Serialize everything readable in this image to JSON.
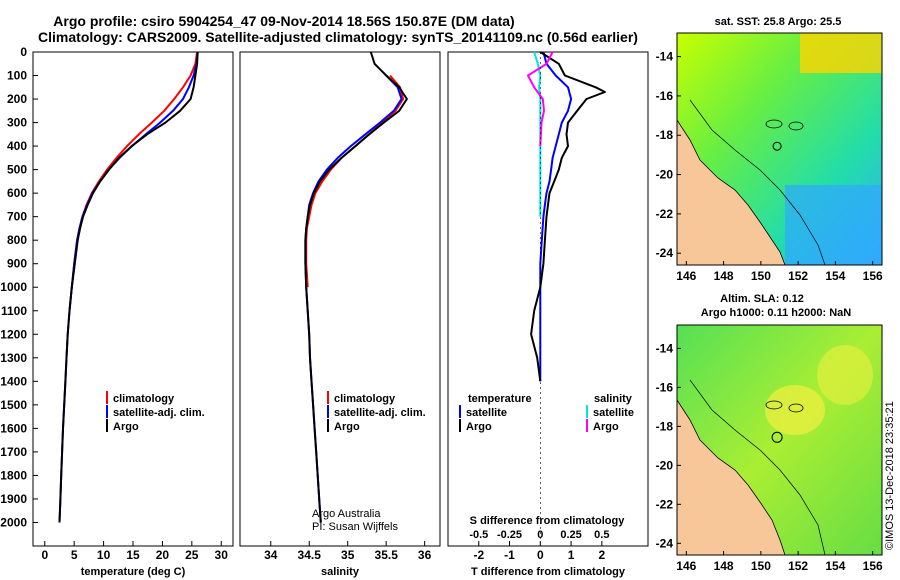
{
  "header": {
    "title_line1": "Argo profile: csiro 5904254_47 09-Nov-2014 18.56S 150.87E (DM data)",
    "title_line2": "Climatology: CARS2009. Satellite-adjusted climatology: synTS_20141109.nc (0.56d earlier)"
  },
  "colors": {
    "climatology": "#ff0000",
    "satellite": "#0000ff",
    "argo": "#000000",
    "satellite_salinity": "#00e5e5",
    "argo_salinity": "#ff00ff",
    "land": "#f7c79a"
  },
  "chart_data": [
    {
      "type": "line",
      "name": "temperature-profile",
      "xlabel": "temperature (deg C)",
      "ylabel": "",
      "xlim": [
        -2,
        32
      ],
      "ylim": [
        2100,
        0
      ],
      "xticks": [
        0,
        5,
        10,
        15,
        20,
        25,
        30
      ],
      "yticks": [
        0,
        100,
        200,
        300,
        400,
        500,
        600,
        700,
        800,
        900,
        1000,
        1100,
        1200,
        1300,
        1400,
        1500,
        1600,
        1700,
        1800,
        1900,
        2000
      ],
      "legend": [
        "climatology",
        "satellite-adj. clim.",
        "Argo"
      ],
      "series": [
        {
          "name": "climatology",
          "color": "#ff0000",
          "points": [
            [
              25.9,
              0
            ],
            [
              25.6,
              50
            ],
            [
              24.8,
              100
            ],
            [
              23.5,
              150
            ],
            [
              22.0,
              200
            ],
            [
              20.3,
              250
            ],
            [
              18.2,
              300
            ],
            [
              16.0,
              350
            ],
            [
              14.0,
              400
            ],
            [
              12.2,
              450
            ],
            [
              10.6,
              500
            ],
            [
              9.2,
              550
            ],
            [
              8.0,
              600
            ],
            [
              7.1,
              650
            ],
            [
              6.4,
              700
            ],
            [
              5.9,
              750
            ],
            [
              5.5,
              800
            ],
            [
              5.0,
              900
            ],
            [
              4.6,
              1000
            ],
            [
              4.2,
              1100
            ]
          ]
        },
        {
          "name": "satellite-adj. clim.",
          "color": "#0000ff",
          "points": [
            [
              26.0,
              0
            ],
            [
              25.8,
              50
            ],
            [
              25.3,
              100
            ],
            [
              24.5,
              150
            ],
            [
              23.5,
              200
            ],
            [
              21.8,
              250
            ],
            [
              19.6,
              300
            ],
            [
              17.2,
              350
            ],
            [
              14.8,
              400
            ],
            [
              12.7,
              450
            ],
            [
              10.9,
              500
            ],
            [
              9.4,
              550
            ],
            [
              8.1,
              600
            ],
            [
              7.2,
              650
            ],
            [
              6.4,
              700
            ],
            [
              5.9,
              750
            ],
            [
              5.5,
              800
            ],
            [
              5.0,
              900
            ],
            [
              4.6,
              1000
            ],
            [
              4.2,
              1100
            ],
            [
              3.9,
              1200
            ],
            [
              3.7,
              1300
            ],
            [
              3.5,
              1400
            ],
            [
              3.3,
              1500
            ],
            [
              3.1,
              1600
            ],
            [
              2.95,
              1700
            ],
            [
              2.8,
              1800
            ],
            [
              2.65,
              1900
            ],
            [
              2.5,
              2000
            ]
          ]
        },
        {
          "name": "Argo",
          "color": "#000000",
          "points": [
            [
              26.0,
              0
            ],
            [
              25.9,
              50
            ],
            [
              25.6,
              100
            ],
            [
              25.3,
              150
            ],
            [
              24.8,
              200
            ],
            [
              23.0,
              250
            ],
            [
              20.5,
              300
            ],
            [
              17.4,
              350
            ],
            [
              14.8,
              400
            ],
            [
              12.6,
              450
            ],
            [
              10.9,
              500
            ],
            [
              9.4,
              550
            ],
            [
              8.2,
              600
            ],
            [
              7.3,
              650
            ],
            [
              6.5,
              700
            ],
            [
              6.0,
              750
            ],
            [
              5.6,
              800
            ],
            [
              5.1,
              900
            ],
            [
              4.6,
              1000
            ],
            [
              4.2,
              1100
            ],
            [
              3.9,
              1200
            ],
            [
              3.7,
              1300
            ],
            [
              3.5,
              1400
            ],
            [
              3.3,
              1500
            ],
            [
              3.1,
              1600
            ],
            [
              2.95,
              1700
            ],
            [
              2.8,
              1800
            ],
            [
              2.65,
              1900
            ],
            [
              2.5,
              2000
            ]
          ]
        }
      ]
    },
    {
      "type": "line",
      "name": "salinity-profile",
      "xlabel": "salinity",
      "xlim": [
        33.6,
        36.2
      ],
      "ylim": [
        2100,
        0
      ],
      "xticks": [
        34,
        34.5,
        35,
        35.5,
        36
      ],
      "xticklabels": [
        "34",
        "34.5",
        "35",
        "35.5",
        "36"
      ],
      "legend": [
        "climatology",
        "satellite-adj. clim.",
        "Argo"
      ],
      "annotations": [
        "Argo Australia",
        "PI: Susan Wijffels"
      ],
      "series": [
        {
          "name": "climatology",
          "color": "#ff0000",
          "points": [
            [
              35.55,
              100
            ],
            [
              35.68,
              150
            ],
            [
              35.72,
              200
            ],
            [
              35.62,
              250
            ],
            [
              35.45,
              300
            ],
            [
              35.28,
              350
            ],
            [
              35.1,
              400
            ],
            [
              34.92,
              450
            ],
            [
              34.78,
              500
            ],
            [
              34.67,
              550
            ],
            [
              34.58,
              600
            ],
            [
              34.53,
              650
            ],
            [
              34.5,
              700
            ],
            [
              34.47,
              750
            ],
            [
              34.46,
              800
            ],
            [
              34.46,
              900
            ],
            [
              34.48,
              1000
            ]
          ]
        },
        {
          "name": "satellite-adj. clim.",
          "color": "#0000ff",
          "points": [
            [
              35.5,
              100
            ],
            [
              35.65,
              150
            ],
            [
              35.7,
              200
            ],
            [
              35.6,
              250
            ],
            [
              35.42,
              300
            ],
            [
              35.23,
              350
            ],
            [
              35.04,
              400
            ],
            [
              34.87,
              450
            ],
            [
              34.73,
              500
            ],
            [
              34.62,
              550
            ],
            [
              34.55,
              600
            ],
            [
              34.5,
              650
            ],
            [
              34.48,
              700
            ],
            [
              34.46,
              750
            ],
            [
              34.45,
              800
            ],
            [
              34.45,
              900
            ],
            [
              34.46,
              1000
            ],
            [
              34.48,
              1100
            ],
            [
              34.5,
              1200
            ],
            [
              34.51,
              1300
            ],
            [
              34.53,
              1400
            ],
            [
              34.55,
              1500
            ],
            [
              34.57,
              1600
            ],
            [
              34.59,
              1700
            ],
            [
              34.61,
              1800
            ],
            [
              34.63,
              1900
            ],
            [
              34.65,
              2000
            ]
          ]
        },
        {
          "name": "Argo",
          "color": "#000000",
          "points": [
            [
              35.3,
              0
            ],
            [
              35.35,
              50
            ],
            [
              35.5,
              100
            ],
            [
              35.67,
              150
            ],
            [
              35.77,
              200
            ],
            [
              35.67,
              250
            ],
            [
              35.47,
              300
            ],
            [
              35.28,
              350
            ],
            [
              35.1,
              400
            ],
            [
              34.92,
              450
            ],
            [
              34.76,
              500
            ],
            [
              34.64,
              550
            ],
            [
              34.56,
              600
            ],
            [
              34.51,
              650
            ],
            [
              34.48,
              700
            ],
            [
              34.46,
              750
            ],
            [
              34.45,
              800
            ],
            [
              34.45,
              900
            ],
            [
              34.46,
              1000
            ],
            [
              34.48,
              1100
            ],
            [
              34.5,
              1200
            ],
            [
              34.51,
              1300
            ],
            [
              34.53,
              1400
            ],
            [
              34.55,
              1500
            ],
            [
              34.57,
              1600
            ],
            [
              34.59,
              1700
            ],
            [
              34.61,
              1800
            ],
            [
              34.63,
              1900
            ],
            [
              34.65,
              2000
            ]
          ]
        }
      ]
    },
    {
      "type": "line",
      "name": "difference-profile",
      "xlabel": "T difference from climatology",
      "top_xlabel": "S difference from climatology",
      "xlim": [
        -3,
        3.5
      ],
      "ylim": [
        2100,
        0
      ],
      "xticks": [
        -2,
        -1,
        0,
        1,
        2
      ],
      "xticklabels": [
        "-2",
        "-1",
        "0",
        "1",
        "2"
      ],
      "top_xticks": [
        -0.5,
        -0.25,
        0,
        0.25,
        0.5
      ],
      "top_xticklabels": [
        "-0.5",
        "-0.25",
        "0",
        "0.25",
        "0.5"
      ],
      "legend_titles": [
        "temperature",
        "salinity"
      ],
      "legend": [
        "satellite",
        "Argo",
        "satellite",
        "Argo"
      ],
      "series": [
        {
          "name": "T satellite",
          "color": "#0000ff",
          "points": [
            [
              0.1,
              0
            ],
            [
              0.2,
              50
            ],
            [
              0.5,
              100
            ],
            [
              0.9,
              150
            ],
            [
              1.0,
              200
            ],
            [
              0.9,
              250
            ],
            [
              0.7,
              300
            ],
            [
              0.6,
              350
            ],
            [
              0.5,
              400
            ],
            [
              0.4,
              450
            ],
            [
              0.35,
              500
            ],
            [
              0.3,
              550
            ],
            [
              0.2,
              600
            ],
            [
              0.15,
              650
            ],
            [
              0.1,
              700
            ],
            [
              0.05,
              800
            ],
            [
              0.0,
              900
            ],
            [
              0.0,
              1000
            ],
            [
              0.0,
              1100
            ],
            [
              0.0,
              1200
            ],
            [
              0.0,
              1300
            ],
            [
              0.0,
              1400
            ]
          ]
        },
        {
          "name": "T Argo",
          "color": "#000000",
          "points": [
            [
              0.0,
              0
            ],
            [
              0.6,
              50
            ],
            [
              0.8,
              100
            ],
            [
              1.8,
              150
            ],
            [
              2.1,
              170
            ],
            [
              1.5,
              200
            ],
            [
              1.2,
              250
            ],
            [
              0.9,
              300
            ],
            [
              0.85,
              350
            ],
            [
              0.9,
              400
            ],
            [
              0.7,
              450
            ],
            [
              0.6,
              500
            ],
            [
              0.45,
              550
            ],
            [
              0.3,
              600
            ],
            [
              0.25,
              650
            ],
            [
              0.2,
              700
            ],
            [
              0.15,
              800
            ],
            [
              0.1,
              900
            ],
            [
              0.0,
              1000
            ],
            [
              -0.2,
              1100
            ],
            [
              -0.3,
              1200
            ],
            [
              -0.1,
              1300
            ],
            [
              0.0,
              1400
            ]
          ]
        },
        {
          "name": "S satellite",
          "color": "#00e5e5",
          "points": [
            [
              -0.05,
              0
            ],
            [
              -0.02,
              50
            ],
            [
              0.0,
              100
            ],
            [
              -0.01,
              150
            ],
            [
              0.0,
              200
            ],
            [
              0.0,
              300
            ],
            [
              0.0,
              400
            ],
            [
              0.0,
              500
            ],
            [
              0.0,
              600
            ],
            [
              0.0,
              700
            ]
          ]
        },
        {
          "name": "S Argo",
          "color": "#ff00ff",
          "points": [
            [
              0.1,
              0
            ],
            [
              0.05,
              50
            ],
            [
              -0.1,
              100
            ],
            [
              -0.05,
              150
            ],
            [
              0.02,
              200
            ],
            [
              0.03,
              250
            ],
            [
              0.01,
              300
            ],
            [
              0.0,
              400
            ]
          ]
        }
      ]
    },
    {
      "type": "heatmap",
      "name": "sst-map",
      "title": "sat. SST: 25.8 Argo: 25.5",
      "xlim": [
        145.5,
        156.5
      ],
      "ylim": [
        -24.6,
        -12.8
      ],
      "xticks": [
        146,
        148,
        150,
        152,
        154,
        156
      ],
      "yticks": [
        -14,
        -16,
        -18,
        -20,
        -22,
        -24
      ],
      "float_position": [
        150.87,
        -18.56
      ]
    },
    {
      "type": "heatmap",
      "name": "sla-map",
      "title_line1": "Altim. SLA: 0.12",
      "title_line2": "Argo h1000: 0.11 h2000: NaN",
      "xlim": [
        145.5,
        156.5
      ],
      "ylim": [
        -24.6,
        -12.8
      ],
      "xticks": [
        146,
        148,
        150,
        152,
        154,
        156
      ],
      "yticks": [
        -14,
        -16,
        -18,
        -20,
        -22,
        -24
      ],
      "float_position": [
        150.87,
        -18.56
      ]
    }
  ],
  "footer": {
    "stamp": "©IMOS 13-Dec-2018 23:35:21"
  }
}
